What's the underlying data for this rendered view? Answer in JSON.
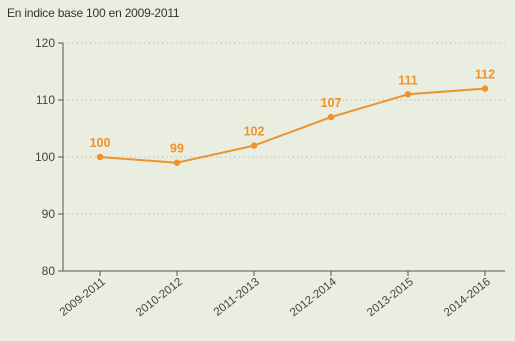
{
  "chart_data": {
    "type": "line",
    "subtitle": "En indice base 100 en 2009-2011",
    "categories": [
      "2009-2011",
      "2010-2012",
      "2011-2013",
      "2012-2014",
      "2013-2015",
      "2014-2016"
    ],
    "series": [
      {
        "values": [
          100,
          99,
          102,
          107,
          111,
          112
        ],
        "color": "#f0922c"
      }
    ],
    "data_labels": [
      "100",
      "99",
      "102",
      "107",
      "111",
      "112"
    ],
    "ylim": [
      80,
      120
    ],
    "yticks": [
      80,
      90,
      100,
      110,
      120
    ],
    "grid": "horizontal dotted",
    "xlabel": "",
    "ylabel": ""
  },
  "colors": {
    "background": "#e9eee1",
    "line": "#f0922c",
    "label": "#f0922c",
    "grid": "#b8c3ab",
    "axis": "#555555"
  }
}
